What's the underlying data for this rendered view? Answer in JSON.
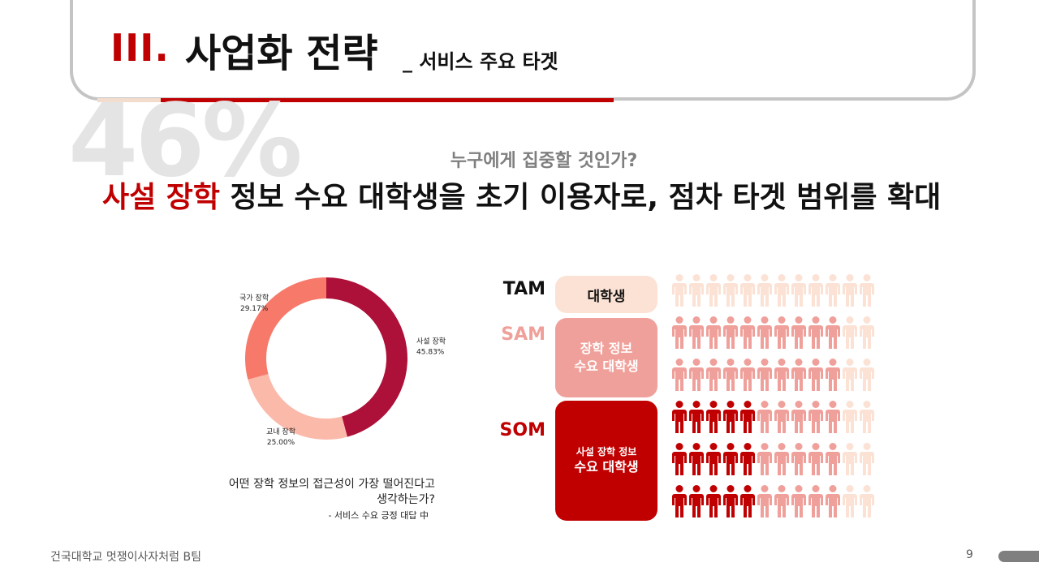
{
  "header": {
    "roman": "III.",
    "title": "사업화 전략",
    "subtitle": "_ 서비스 주요 타겟"
  },
  "colors": {
    "accent": "#c00000",
    "tam": "#fbe2d5",
    "sam": "#f0a09a",
    "som": "#c00000"
  },
  "big_stat": "46%",
  "question": "누구에게 집중할 것인가?",
  "headline": {
    "highlight": "사설 장학",
    "rest": " 정보 수요 대학생을 초기 이용자로, 점차 타겟 범위를 확대"
  },
  "chart_data": [
    {
      "type": "pie",
      "variant": "donut",
      "slices": [
        {
          "label": "사설 장학",
          "value": 45.83,
          "value_text": "45.83%",
          "color": "#ad1038"
        },
        {
          "label": "교내 장학",
          "value": 25.0,
          "value_text": "25.00%",
          "color": "#fbb9aa"
        },
        {
          "label": "국가 장학",
          "value": 29.17,
          "value_text": "29.17%",
          "color": "#f7796a"
        }
      ]
    }
  ],
  "chart_caption": {
    "line1": "어떤 장학 정보의 접근성이 가장 떨어진다고",
    "line2": "생각하는가?",
    "note": "-  서비스 수요 긍정 대답 中"
  },
  "market": {
    "tam": {
      "label": "TAM",
      "box": "대학생"
    },
    "sam": {
      "label": "SAM",
      "box_line1": "장학 정보",
      "box_line2": "수요 대학생"
    },
    "som": {
      "label": "SOM",
      "box_line1": "사설 장학 정보",
      "box_line2": "수요 대학생"
    }
  },
  "people_grid": {
    "rows": [
      [
        "tam",
        "tam",
        "tam",
        "tam",
        "tam",
        "tam",
        "tam",
        "tam",
        "tam",
        "tam",
        "tam",
        "tam"
      ],
      [
        "sam",
        "sam",
        "sam",
        "sam",
        "sam",
        "sam",
        "sam",
        "sam",
        "sam",
        "sam",
        "tam",
        "tam"
      ],
      [
        "sam",
        "sam",
        "sam",
        "sam",
        "sam",
        "sam",
        "sam",
        "sam",
        "sam",
        "sam",
        "tam",
        "tam"
      ],
      [
        "som",
        "som",
        "som",
        "som",
        "som",
        "sam",
        "sam",
        "sam",
        "sam",
        "sam",
        "tam",
        "tam"
      ],
      [
        "som",
        "som",
        "som",
        "som",
        "som",
        "sam",
        "sam",
        "sam",
        "sam",
        "sam",
        "tam",
        "tam"
      ],
      [
        "som",
        "som",
        "som",
        "som",
        "som",
        "sam",
        "sam",
        "sam",
        "sam",
        "sam",
        "tam",
        "tam"
      ]
    ]
  },
  "footer": {
    "team": "건국대학교 멋쟁이사자처럼 B팀",
    "page": "9"
  }
}
